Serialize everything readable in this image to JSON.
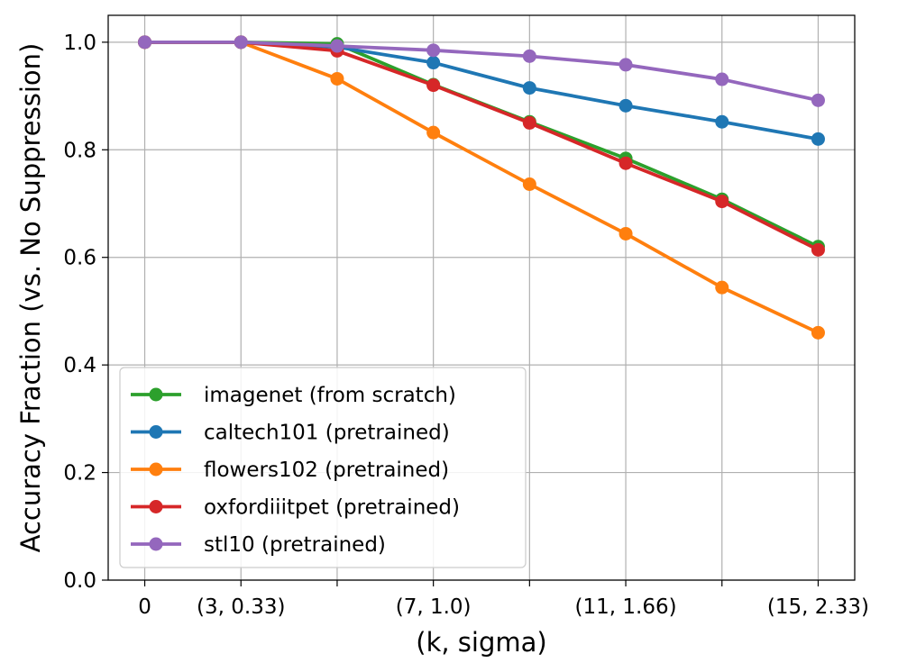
{
  "chart_data": {
    "type": "line",
    "title": "",
    "xlabel": "(k, sigma)",
    "ylabel": "Accuracy Fraction (vs. No Suppression)",
    "x": [
      0,
      1,
      2,
      3,
      4,
      5,
      6,
      7
    ],
    "x_ticks": [
      {
        "x": 0,
        "label": "0"
      },
      {
        "x": 1,
        "label": "(3, 0.33)"
      },
      {
        "x": 2,
        "label": ""
      },
      {
        "x": 3,
        "label": "(7, 1.0)"
      },
      {
        "x": 4,
        "label": ""
      },
      {
        "x": 5,
        "label": "(11, 1.66)"
      },
      {
        "x": 6,
        "label": ""
      },
      {
        "x": 7,
        "label": "(15, 2.33)"
      }
    ],
    "xlim": [
      -0.38,
      7.38
    ],
    "ylim": [
      0.0,
      1.05
    ],
    "y_ticks": [
      {
        "y": 0.0,
        "label": "0.0"
      },
      {
        "y": 0.2,
        "label": "0.2"
      },
      {
        "y": 0.4,
        "label": "0.4"
      },
      {
        "y": 0.6,
        "label": "0.6"
      },
      {
        "y": 0.8,
        "label": "0.8"
      },
      {
        "y": 1.0,
        "label": "1.0"
      }
    ],
    "grid": true,
    "legend_position": "lower-left",
    "series": [
      {
        "name": "imagenet (from scratch)",
        "color": "#2ca02c",
        "values": [
          1.0,
          1.0,
          0.997,
          0.921,
          0.852,
          0.784,
          0.708,
          0.62
        ]
      },
      {
        "name": "caltech101 (pretrained)",
        "color": "#1f77b4",
        "values": [
          1.0,
          1.0,
          0.991,
          0.962,
          0.915,
          0.882,
          0.852,
          0.82
        ]
      },
      {
        "name": "flowers102 (pretrained)",
        "color": "#ff7f0e",
        "values": [
          1.0,
          1.0,
          0.932,
          0.832,
          0.736,
          0.644,
          0.544,
          0.46
        ]
      },
      {
        "name": "oxfordiiitpet (pretrained)",
        "color": "#d62728",
        "values": [
          1.0,
          1.0,
          0.984,
          0.92,
          0.85,
          0.775,
          0.704,
          0.614
        ]
      },
      {
        "name": "stl10 (pretrained)",
        "color": "#9467bd",
        "values": [
          1.0,
          1.0,
          0.993,
          0.985,
          0.974,
          0.958,
          0.931,
          0.892
        ]
      }
    ]
  }
}
